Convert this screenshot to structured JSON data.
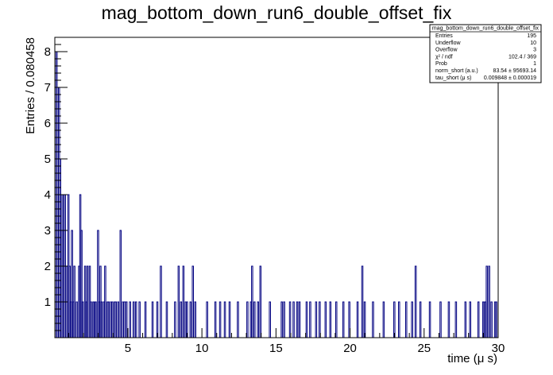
{
  "chart_data": {
    "type": "bar",
    "title": "mag_bottom_down_run6_double_offset_fix",
    "xlabel": "time (μ s)",
    "ylabel": "Entries / 0.080458",
    "xlim": [
      0.07,
      30.0
    ],
    "ylim": [
      0,
      8.4
    ],
    "bin_width": 0.080458,
    "x_ticks": [
      5,
      10,
      15,
      20,
      25,
      30
    ],
    "y_ticks": [
      1,
      2,
      3,
      4,
      5,
      6,
      7,
      8
    ],
    "x_ticks_minor_step": 1,
    "y_ticks_minor_step": 0.2,
    "line_color": "#000080",
    "grid": false,
    "legend": "none",
    "bins": [
      [
        0.07,
        3
      ],
      [
        0.15,
        8
      ],
      [
        0.23,
        4
      ],
      [
        0.31,
        7
      ],
      [
        0.39,
        5
      ],
      [
        0.47,
        4
      ],
      [
        0.55,
        3
      ],
      [
        0.63,
        4
      ],
      [
        0.71,
        4
      ],
      [
        0.87,
        2
      ],
      [
        0.95,
        4
      ],
      [
        1.03,
        2
      ],
      [
        1.11,
        1
      ],
      [
        1.19,
        3
      ],
      [
        1.27,
        1
      ],
      [
        1.35,
        2
      ],
      [
        1.43,
        0
      ],
      [
        1.51,
        1
      ],
      [
        1.59,
        0
      ],
      [
        1.67,
        2
      ],
      [
        1.75,
        4
      ],
      [
        1.83,
        3
      ],
      [
        1.91,
        1
      ],
      [
        1.99,
        0
      ],
      [
        2.07,
        2
      ],
      [
        2.15,
        1
      ],
      [
        2.23,
        2
      ],
      [
        2.31,
        0
      ],
      [
        2.39,
        2
      ],
      [
        2.47,
        1
      ],
      [
        2.55,
        0
      ],
      [
        2.63,
        1
      ],
      [
        2.71,
        1
      ],
      [
        2.79,
        1
      ],
      [
        2.87,
        0
      ],
      [
        2.95,
        3
      ],
      [
        3.03,
        1
      ],
      [
        3.11,
        2
      ],
      [
        3.19,
        1
      ],
      [
        3.27,
        0
      ],
      [
        3.35,
        1
      ],
      [
        3.43,
        2
      ],
      [
        3.51,
        0
      ],
      [
        3.59,
        1
      ],
      [
        3.67,
        1
      ],
      [
        3.75,
        0
      ],
      [
        3.83,
        1
      ],
      [
        3.91,
        1
      ],
      [
        3.99,
        0
      ],
      [
        4.07,
        1
      ],
      [
        4.15,
        1
      ],
      [
        4.23,
        0
      ],
      [
        4.31,
        1
      ],
      [
        4.39,
        0
      ],
      [
        4.47,
        3
      ],
      [
        4.55,
        0
      ],
      [
        4.63,
        1
      ],
      [
        4.71,
        1
      ],
      [
        4.79,
        1
      ],
      [
        4.87,
        1
      ],
      [
        4.95,
        0
      ],
      [
        5.11,
        1
      ],
      [
        5.35,
        1
      ],
      [
        5.51,
        1
      ],
      [
        5.75,
        1
      ],
      [
        6.15,
        1
      ],
      [
        6.31,
        0
      ],
      [
        6.63,
        1
      ],
      [
        6.95,
        1
      ],
      [
        7.19,
        2
      ],
      [
        7.43,
        0
      ],
      [
        7.59,
        1
      ],
      [
        7.75,
        0
      ],
      [
        8.15,
        1
      ],
      [
        8.39,
        2
      ],
      [
        8.55,
        1
      ],
      [
        8.71,
        2
      ],
      [
        8.87,
        1
      ],
      [
        8.95,
        1
      ],
      [
        9.19,
        1
      ],
      [
        9.35,
        2
      ],
      [
        9.51,
        1
      ],
      [
        10.31,
        1
      ],
      [
        10.87,
        1
      ],
      [
        11.19,
        1
      ],
      [
        11.51,
        1
      ],
      [
        11.83,
        1
      ],
      [
        12.39,
        1
      ],
      [
        13.03,
        1
      ],
      [
        13.27,
        1
      ],
      [
        13.35,
        2
      ],
      [
        13.51,
        1
      ],
      [
        13.75,
        1
      ],
      [
        13.91,
        2
      ],
      [
        14.55,
        1
      ],
      [
        15.35,
        1
      ],
      [
        15.51,
        1
      ],
      [
        15.91,
        1
      ],
      [
        16.15,
        1
      ],
      [
        16.39,
        1
      ],
      [
        16.55,
        1
      ],
      [
        17.03,
        1
      ],
      [
        17.27,
        1
      ],
      [
        17.67,
        1
      ],
      [
        17.91,
        1
      ],
      [
        18.31,
        1
      ],
      [
        18.63,
        1
      ],
      [
        19.03,
        1
      ],
      [
        19.51,
        1
      ],
      [
        19.91,
        1
      ],
      [
        20.47,
        1
      ],
      [
        20.79,
        2
      ],
      [
        20.95,
        1
      ],
      [
        21.51,
        1
      ],
      [
        22.23,
        1
      ],
      [
        22.95,
        1
      ],
      [
        23.27,
        1
      ],
      [
        23.75,
        1
      ],
      [
        24.15,
        1
      ],
      [
        24.39,
        2
      ],
      [
        24.71,
        1
      ],
      [
        25.35,
        1
      ],
      [
        26.07,
        1
      ],
      [
        26.63,
        1
      ],
      [
        27.11,
        1
      ],
      [
        27.75,
        1
      ],
      [
        28.07,
        1
      ],
      [
        28.63,
        1
      ],
      [
        28.95,
        1
      ],
      [
        29.07,
        1
      ],
      [
        29.19,
        2
      ],
      [
        29.35,
        2
      ],
      [
        29.51,
        1
      ],
      [
        29.75,
        1
      ],
      [
        29.83,
        1
      ]
    ],
    "stats_box": {
      "header": "mag_bottom_down_run6_double_offset_fix",
      "rows": [
        {
          "label": "Entries",
          "value": "195"
        },
        {
          "label": "Underflow",
          "value": "10"
        },
        {
          "label": "Overflow",
          "value": "3"
        },
        {
          "label": "χ² / ndf",
          "value": "102.4 / 369"
        },
        {
          "label": "Prob",
          "value": "1"
        },
        {
          "label": "norm_short (a.u.)",
          "value": "83.54 ± 95693.14"
        },
        {
          "label": "tau_short (μ s)",
          "value": "0.009848 ± 0.000019"
        }
      ]
    }
  }
}
